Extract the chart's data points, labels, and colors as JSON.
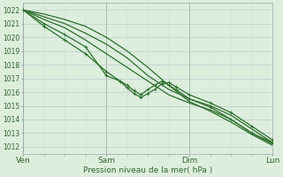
{
  "title": "Pression niveau de la mer( hPa )",
  "ylabel_ticks": [
    1012,
    1013,
    1014,
    1015,
    1016,
    1017,
    1018,
    1019,
    1020,
    1021,
    1022
  ],
  "ylim": [
    1011.5,
    1022.5
  ],
  "xlim": [
    0,
    72
  ],
  "xtick_positions": [
    0,
    24,
    48,
    72
  ],
  "xtick_labels": [
    "Ven",
    "Sam",
    "Dim",
    "Lun"
  ],
  "bg_color": "#ddeedd",
  "grid_major_color": "#bbcccc",
  "grid_minor_color": "#ccdddd",
  "line_color": "#2d6e2d",
  "vline_color": "#336633",
  "lines": [
    {
      "x": [
        0,
        6,
        12,
        18,
        24,
        30,
        36,
        42,
        48,
        54,
        60,
        66,
        72
      ],
      "y": [
        1022,
        1021.5,
        1021.0,
        1020.3,
        1019.5,
        1018.5,
        1017.2,
        1016.2,
        1015.5,
        1015.0,
        1014.3,
        1013.3,
        1012.3
      ],
      "marker": false,
      "lw": 0.9
    },
    {
      "x": [
        0,
        6,
        12,
        18,
        24,
        30,
        36,
        42,
        48,
        54,
        60,
        66,
        72
      ],
      "y": [
        1022,
        1021.3,
        1020.7,
        1019.8,
        1018.8,
        1017.8,
        1016.8,
        1015.8,
        1015.2,
        1014.7,
        1014.0,
        1013.0,
        1012.2
      ],
      "marker": false,
      "lw": 0.9
    },
    {
      "x": [
        0,
        6,
        12,
        18,
        24,
        28,
        30,
        32,
        34,
        36,
        38,
        40,
        42,
        44,
        48,
        54,
        60,
        66,
        72
      ],
      "y": [
        1022,
        1021.0,
        1020.2,
        1019.3,
        1017.2,
        1016.8,
        1016.3,
        1015.9,
        1015.6,
        1015.9,
        1016.2,
        1016.6,
        1016.7,
        1016.4,
        1015.8,
        1015.2,
        1014.5,
        1013.5,
        1012.5
      ],
      "marker": true,
      "lw": 0.9
    },
    {
      "x": [
        0,
        6,
        12,
        18,
        24,
        28,
        30,
        32,
        34,
        36,
        38,
        40,
        42,
        44,
        48,
        54,
        60,
        66,
        72
      ],
      "y": [
        1022,
        1020.8,
        1019.8,
        1018.8,
        1017.5,
        1016.8,
        1016.5,
        1016.1,
        1015.8,
        1016.2,
        1016.5,
        1016.8,
        1016.5,
        1016.2,
        1015.5,
        1014.9,
        1014.0,
        1013.0,
        1012.3
      ],
      "marker": true,
      "lw": 0.9
    },
    {
      "x": [
        0,
        6,
        12,
        18,
        24,
        30,
        36,
        42,
        48,
        54,
        60,
        66,
        72
      ],
      "y": [
        1022,
        1021.7,
        1021.3,
        1020.8,
        1020.0,
        1019.0,
        1017.8,
        1016.5,
        1015.3,
        1014.6,
        1013.8,
        1012.9,
        1012.1
      ],
      "marker": false,
      "lw": 0.9
    }
  ]
}
